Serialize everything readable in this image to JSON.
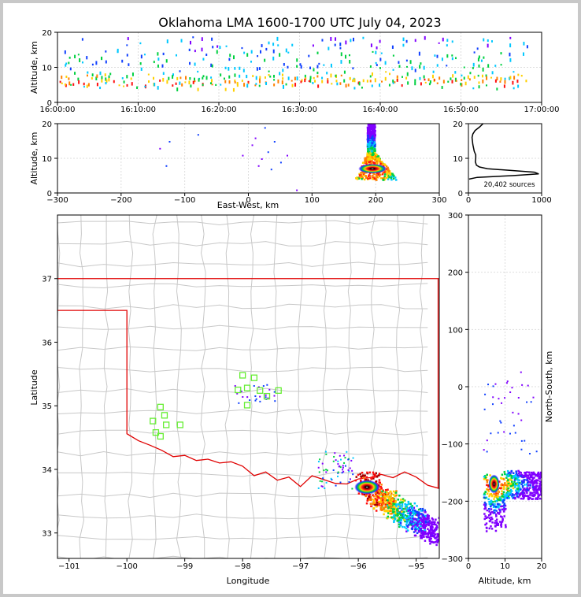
{
  "chart_data": [
    {
      "id": "time_height",
      "type": "heatmap",
      "title": "Oklahoma LMA 1600-1700 UTC July 04, 2023",
      "ylabel": "Altitude, km",
      "xlim": [
        0,
        60
      ],
      "ylim": [
        0,
        20
      ],
      "yticks": [
        0,
        10,
        20
      ],
      "xtick_values": [
        0,
        10,
        20,
        30,
        40,
        50,
        60
      ],
      "xtick_labels": [
        "16:00:00",
        "16:10:00",
        "16:20:00",
        "16:30:00",
        "16:40:00",
        "16:50:00",
        "17:00:00"
      ],
      "density_rows": [
        {
          "alt": 18,
          "level": 1
        },
        {
          "alt": 16,
          "level": 1
        },
        {
          "alt": 14,
          "level": 2
        },
        {
          "alt": 12,
          "level": 2
        },
        {
          "alt": 10,
          "level": 2
        },
        {
          "alt": 8,
          "level": 3
        },
        {
          "alt": 7,
          "level": 4
        },
        {
          "alt": 6,
          "level": 5
        },
        {
          "alt": 5,
          "level": 3
        }
      ]
    },
    {
      "id": "east_west_altitude",
      "type": "heatmap",
      "xlabel": "East-West, km",
      "ylabel": "Altitude, km",
      "xlim": [
        -300,
        300
      ],
      "ylim": [
        0,
        20
      ],
      "xticks": [
        -300,
        -200,
        -100,
        0,
        100,
        200,
        300
      ],
      "xtick_labels": [
        "−300",
        "−200",
        "−100",
        "0",
        "100",
        "200",
        "300"
      ],
      "yticks": [
        0,
        10,
        20
      ],
      "core": {
        "x": 190,
        "alt": 7
      },
      "scatter": [
        {
          "x": -140,
          "alt": 13
        },
        {
          "x": -130,
          "alt": 8
        },
        {
          "x": -125,
          "alt": 15
        },
        {
          "x": -80,
          "alt": 17
        },
        {
          "x": -10,
          "alt": 11
        },
        {
          "x": 5,
          "alt": 14
        },
        {
          "x": 10,
          "alt": 16
        },
        {
          "x": 15,
          "alt": 8
        },
        {
          "x": 20,
          "alt": 10
        },
        {
          "x": 25,
          "alt": 19
        },
        {
          "x": 30,
          "alt": 12
        },
        {
          "x": 35,
          "alt": 7
        },
        {
          "x": 40,
          "alt": 15
        },
        {
          "x": 50,
          "alt": 9
        },
        {
          "x": 60,
          "alt": 11
        },
        {
          "x": 75,
          "alt": 1
        }
      ]
    },
    {
      "id": "altitude_histogram",
      "type": "line",
      "xlim": [
        0,
        1000
      ],
      "ylim": [
        0,
        20
      ],
      "xticks": [
        0,
        1000
      ],
      "yticks": [
        0,
        10,
        20
      ],
      "annotation": "20,402 sources",
      "altitude": [
        4,
        4.5,
        5,
        5.5,
        6,
        6.5,
        7,
        7.5,
        8,
        9,
        10,
        11,
        12,
        13,
        14,
        15,
        16,
        17,
        18,
        19,
        20
      ],
      "counts": [
        10,
        120,
        600,
        960,
        900,
        580,
        260,
        150,
        110,
        95,
        100,
        100,
        80,
        70,
        60,
        55,
        50,
        60,
        90,
        150,
        200
      ]
    },
    {
      "id": "plan_view",
      "type": "scatter",
      "xlabel": "Longitude",
      "ylabel": "Latitude",
      "xlim": [
        -101.2,
        -94.6
      ],
      "ylim": [
        32.6,
        38.0
      ],
      "xticks": [
        -101,
        -100,
        -99,
        -98,
        -97,
        -96,
        -95
      ],
      "xtick_labels": [
        "−101",
        "−100",
        "−99",
        "−98",
        "−97",
        "−96",
        "−95"
      ],
      "yticks": [
        33,
        34,
        35,
        36,
        37
      ],
      "storm_core": {
        "lon": -95.9,
        "lat": 33.72
      },
      "stations": [
        {
          "lon": -99.42,
          "lat": 34.98
        },
        {
          "lon": -99.35,
          "lat": 34.85
        },
        {
          "lon": -99.55,
          "lat": 34.76
        },
        {
          "lon": -99.32,
          "lat": 34.7
        },
        {
          "lon": -99.08,
          "lat": 34.7
        },
        {
          "lon": -99.5,
          "lat": 34.58
        },
        {
          "lon": -99.42,
          "lat": 34.52
        },
        {
          "lon": -98.0,
          "lat": 35.48
        },
        {
          "lon": -97.8,
          "lat": 35.44
        },
        {
          "lon": -98.08,
          "lat": 35.25
        },
        {
          "lon": -97.92,
          "lat": 35.28
        },
        {
          "lon": -97.7,
          "lat": 35.24
        },
        {
          "lon": -97.58,
          "lat": 35.15
        },
        {
          "lon": -97.38,
          "lat": 35.24
        },
        {
          "lon": -97.92,
          "lat": 35.01
        }
      ]
    },
    {
      "id": "altitude_north_south",
      "type": "heatmap",
      "xlabel": "Altitude, km",
      "ylabel": "North-South, km",
      "xlim": [
        0,
        20
      ],
      "ylim": [
        -300,
        300
      ],
      "xticks": [
        0,
        10,
        20
      ],
      "yticks": [
        -300,
        -200,
        -100,
        0,
        100,
        200,
        300
      ],
      "ytick_labels": [
        "−300",
        "−200",
        "−100",
        "0",
        "100",
        "200",
        "300"
      ],
      "core": {
        "alt": 7,
        "ns": -170
      }
    }
  ]
}
